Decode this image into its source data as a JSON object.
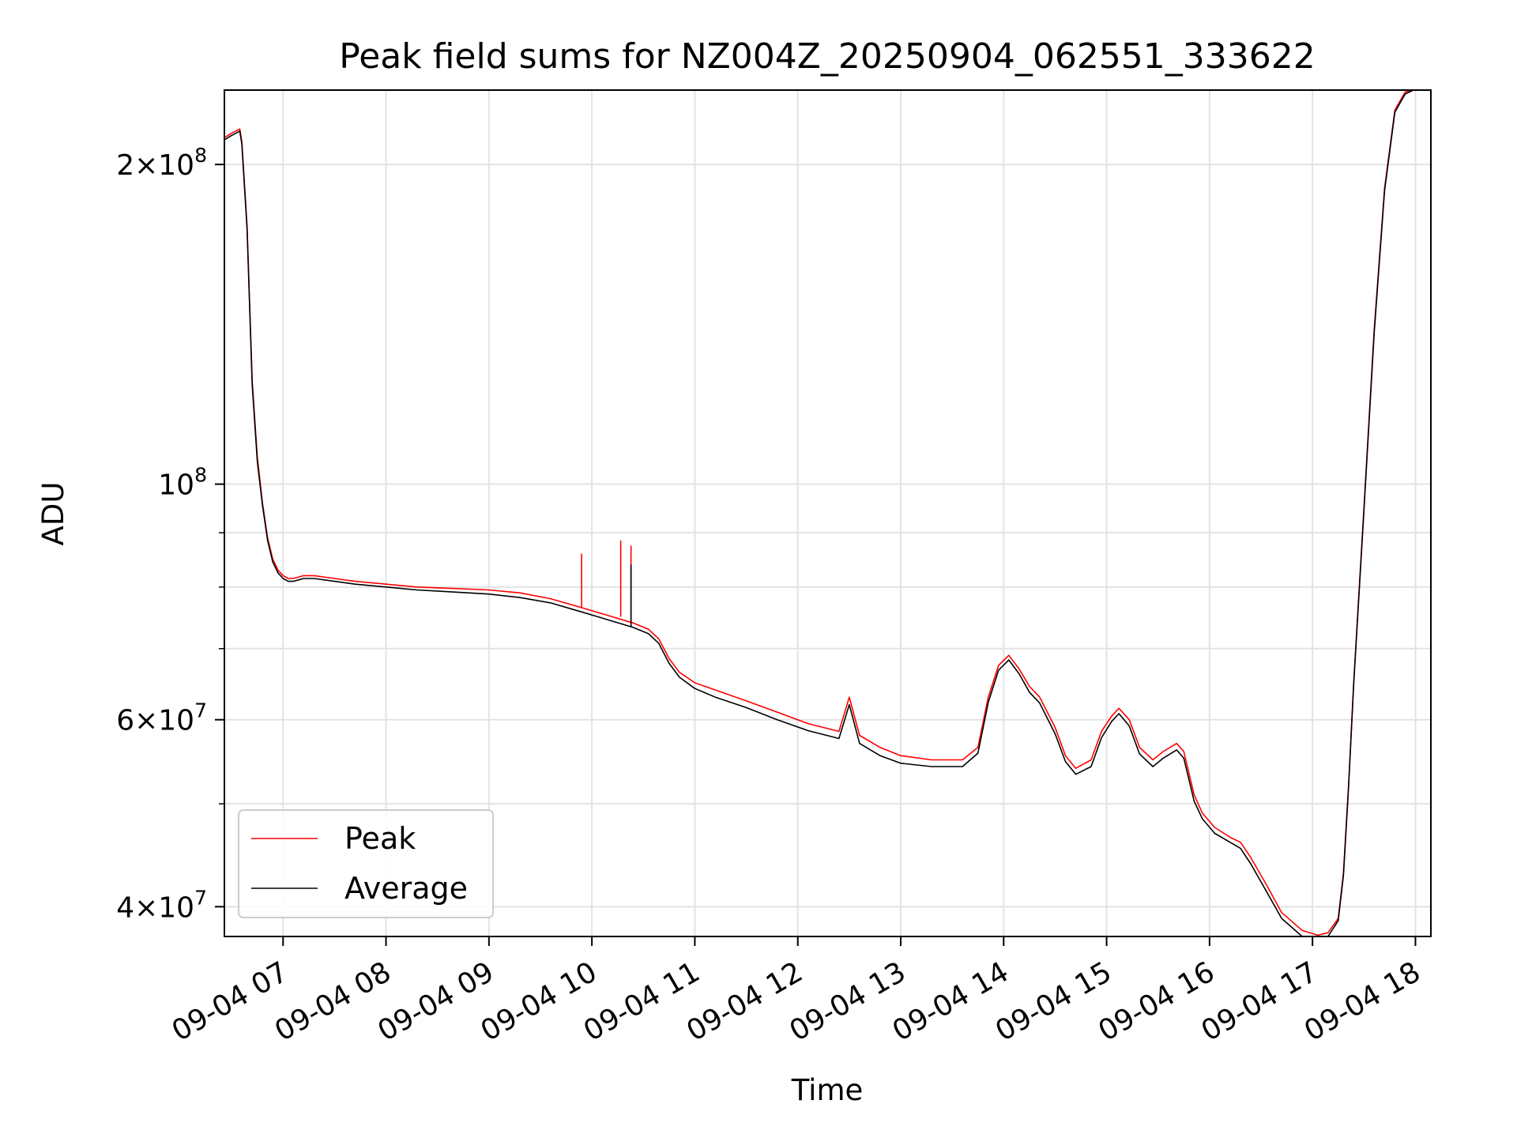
{
  "chart_data": {
    "type": "line",
    "title": "Peak field sums for NZ004Z_20250904_062551_333622",
    "xlabel": "Time",
    "ylabel": "ADU",
    "y_scale": "log",
    "grid": true,
    "legend_position": "lower-left",
    "x_start": "2025-09-04 06:25",
    "x_end": "2025-09-04 18:08",
    "xlim_hours": [
      6.43,
      18.15
    ],
    "ylim": [
      37500000,
      235000000
    ],
    "x_ticks": [
      {
        "value": 7,
        "label": "09-04 07"
      },
      {
        "value": 8,
        "label": "09-04 08"
      },
      {
        "value": 9,
        "label": "09-04 09"
      },
      {
        "value": 10,
        "label": "09-04 10"
      },
      {
        "value": 11,
        "label": "09-04 11"
      },
      {
        "value": 12,
        "label": "09-04 12"
      },
      {
        "value": 13,
        "label": "09-04 13"
      },
      {
        "value": 14,
        "label": "09-04 14"
      },
      {
        "value": 15,
        "label": "09-04 15"
      },
      {
        "value": 16,
        "label": "09-04 16"
      },
      {
        "value": 17,
        "label": "09-04 17"
      },
      {
        "value": 18,
        "label": "09-04 18"
      }
    ],
    "y_major_ticks": [
      {
        "value": 40000000,
        "mantissa": "4",
        "exp": "7"
      },
      {
        "value": 60000000,
        "mantissa": "6",
        "exp": "7"
      },
      {
        "value": 100000000,
        "mantissa": "",
        "exp": "8"
      },
      {
        "value": 200000000,
        "mantissa": "2",
        "exp": "8"
      }
    ],
    "y_minor_ticks": [
      50000000,
      70000000,
      80000000,
      90000000
    ],
    "series": [
      {
        "name": "Peak",
        "color": "#ff0000",
        "x": [
          6.43,
          6.5,
          6.58,
          6.6,
          6.65,
          6.7,
          6.75,
          6.8,
          6.85,
          6.9,
          6.95,
          7.0,
          7.05,
          7.1,
          7.2,
          7.3,
          7.5,
          7.7,
          8.0,
          8.3,
          8.6,
          9.0,
          9.3,
          9.6,
          9.9,
          10.2,
          10.4,
          10.55,
          10.65,
          10.75,
          10.85,
          11.0,
          11.2,
          11.5,
          11.8,
          12.1,
          12.4,
          12.5,
          12.6,
          12.8,
          13.0,
          13.3,
          13.6,
          13.75,
          13.85,
          13.95,
          14.05,
          14.15,
          14.25,
          14.35,
          14.5,
          14.6,
          14.7,
          14.85,
          14.95,
          15.05,
          15.12,
          15.22,
          15.32,
          15.45,
          15.55,
          15.68,
          15.75,
          15.85,
          15.93,
          16.05,
          16.2,
          16.3,
          16.4,
          16.55,
          16.7,
          16.9,
          17.05,
          17.15,
          17.25,
          17.3,
          17.35,
          17.4,
          17.5,
          17.6,
          17.7,
          17.8,
          17.9,
          17.98,
          18.03,
          18.15
        ],
        "values": [
          212000000,
          214000000,
          216000000,
          210000000,
          175000000,
          125000000,
          106000000,
          96000000,
          89000000,
          85000000,
          83000000,
          82000000,
          81500000,
          81500000,
          82000000,
          82000000,
          81500000,
          81000000,
          80500000,
          80000000,
          79800000,
          79500000,
          79000000,
          78000000,
          76500000,
          75000000,
          74000000,
          73000000,
          71500000,
          68500000,
          66500000,
          65000000,
          64000000,
          62500000,
          61000000,
          59500000,
          58500000,
          63000000,
          58000000,
          56500000,
          55500000,
          55000000,
          55000000,
          56500000,
          63000000,
          67500000,
          69000000,
          67000000,
          64500000,
          63000000,
          59000000,
          55500000,
          54000000,
          55000000,
          58500000,
          60500000,
          61500000,
          60000000,
          56500000,
          55000000,
          56000000,
          57000000,
          56000000,
          51000000,
          49000000,
          47500000,
          46500000,
          46000000,
          44500000,
          42000000,
          39500000,
          38000000,
          37600000,
          37800000,
          39000000,
          43000000,
          52000000,
          65000000,
          95000000,
          140000000,
          190000000,
          225000000,
          234000000,
          235000000,
          235000000,
          235000000
        ]
      },
      {
        "name": "Average",
        "color": "#000000",
        "x": [
          6.43,
          6.5,
          6.58,
          6.6,
          6.65,
          6.7,
          6.75,
          6.8,
          6.85,
          6.9,
          6.95,
          7.0,
          7.05,
          7.1,
          7.2,
          7.3,
          7.5,
          7.7,
          8.0,
          8.3,
          8.6,
          9.0,
          9.3,
          9.6,
          9.9,
          10.2,
          10.4,
          10.55,
          10.65,
          10.75,
          10.85,
          11.0,
          11.2,
          11.5,
          11.8,
          12.1,
          12.4,
          12.5,
          12.6,
          12.8,
          13.0,
          13.3,
          13.6,
          13.75,
          13.85,
          13.95,
          14.05,
          14.15,
          14.25,
          14.35,
          14.5,
          14.6,
          14.7,
          14.85,
          14.95,
          15.05,
          15.12,
          15.22,
          15.32,
          15.45,
          15.55,
          15.68,
          15.75,
          15.85,
          15.93,
          16.05,
          16.2,
          16.3,
          16.4,
          16.55,
          16.7,
          16.9,
          17.05,
          17.15,
          17.25,
          17.3,
          17.35,
          17.4,
          17.5,
          17.6,
          17.7,
          17.8,
          17.9,
          17.98,
          18.03,
          18.15
        ],
        "values": [
          211000000,
          213000000,
          215000000,
          209000000,
          174000000,
          124000000,
          105000000,
          95500000,
          88500000,
          84500000,
          82500000,
          81500000,
          81000000,
          81000000,
          81500000,
          81500000,
          81000000,
          80500000,
          80000000,
          79500000,
          79200000,
          78800000,
          78200000,
          77300000,
          75800000,
          74300000,
          73300000,
          72300000,
          70800000,
          67800000,
          65800000,
          64200000,
          63000000,
          61600000,
          60000000,
          58600000,
          57600000,
          62000000,
          57000000,
          55500000,
          54600000,
          54200000,
          54200000,
          55800000,
          62300000,
          66800000,
          68300000,
          66300000,
          63700000,
          62200000,
          58200000,
          54800000,
          53300000,
          54200000,
          57700000,
          59800000,
          60800000,
          59200000,
          55700000,
          54200000,
          55200000,
          56200000,
          55200000,
          50300000,
          48400000,
          46900000,
          46000000,
          45400000,
          43900000,
          41400000,
          39000000,
          37500000,
          37300000,
          37500000,
          38800000,
          42800000,
          51800000,
          64800000,
          94500000,
          139000000,
          189000000,
          224000000,
          233000000,
          235000000,
          235000000,
          235000000
        ]
      }
    ],
    "spikes": [
      {
        "series": "Peak",
        "x": 9.9,
        "value": 86000000
      },
      {
        "series": "Peak",
        "x": 10.28,
        "value": 88500000
      },
      {
        "series": "Peak",
        "x": 10.38,
        "value": 87500000
      },
      {
        "series": "Average",
        "x": 10.38,
        "value": 84000000
      }
    ]
  }
}
